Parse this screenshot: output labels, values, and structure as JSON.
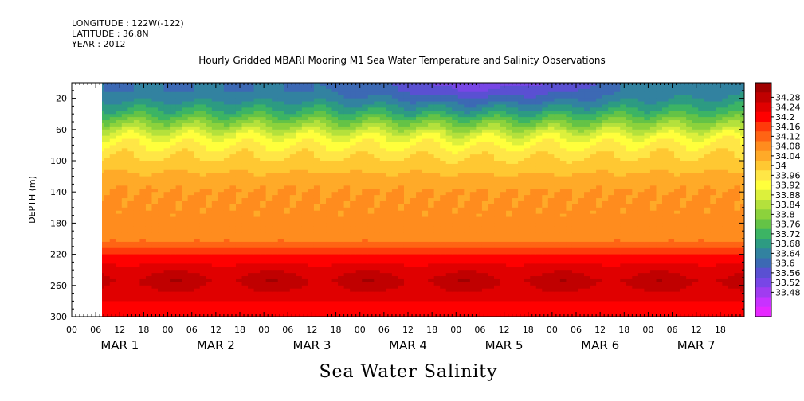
{
  "header": {
    "longitude": "LONGITUDE : 122W(-122)",
    "latitude": "LATITUDE : 36.8N",
    "year": "YEAR : 2012"
  },
  "chart_data": {
    "type": "heatmap",
    "title": "Hourly Gridded MBARI Mooring M1 Sea Water Temperature and Salinity Observations",
    "xlabel": "Sea Water Salinity",
    "ylabel": "DEPTH (m)",
    "y_axis": {
      "ticks": [
        20,
        60,
        100,
        140,
        180,
        220,
        260,
        300
      ],
      "range": [
        0,
        300
      ],
      "inverted": true
    },
    "x_axis": {
      "hour_ticks": [
        "00",
        "06",
        "12",
        "18",
        "00",
        "06",
        "12",
        "18",
        "00",
        "06",
        "12",
        "18",
        "00",
        "06",
        "12",
        "18",
        "00",
        "06",
        "12",
        "18",
        "00",
        "06",
        "12",
        "18",
        "00",
        "06",
        "12",
        "18"
      ],
      "day_labels": [
        "MAR 1",
        "MAR 2",
        "MAR 3",
        "MAR 4",
        "MAR 5",
        "MAR 6",
        "MAR 7"
      ],
      "data_start_hour": 5,
      "total_hours": 168
    },
    "colorbar": {
      "levels": [
        "34.28",
        "34.24",
        "34.2",
        "34.16",
        "34.12",
        "34.08",
        "34.04",
        "34",
        "33.96",
        "33.92",
        "33.88",
        "33.84",
        "33.8",
        "33.76",
        "33.72",
        "33.68",
        "33.64",
        "33.6",
        "33.56",
        "33.52",
        "33.48"
      ],
      "colors": [
        "#a00000",
        "#c00000",
        "#e00000",
        "#ff0000",
        "#ff3a0a",
        "#ff6414",
        "#ff8c1e",
        "#ffaa28",
        "#ffc832",
        "#ffe646",
        "#ffff3c",
        "#dcf03c",
        "#b4e13c",
        "#8cd23c",
        "#64c346",
        "#3cb464",
        "#2d9b82",
        "#3282a0",
        "#3c69b4",
        "#5a50d2",
        "#7846e6",
        "#a03cf0",
        "#c832ff",
        "#e628ff"
      ]
    },
    "profile_depths": [
      10,
      20,
      35,
      50,
      65,
      80,
      100,
      120,
      140,
      160,
      180,
      200,
      210,
      225,
      240,
      255,
      270,
      285,
      300
    ],
    "mean_profile": [
      33.68,
      33.7,
      33.75,
      33.82,
      33.9,
      33.95,
      33.99,
      34.02,
      34.05,
      34.06,
      34.06,
      34.07,
      34.11,
      34.16,
      34.2,
      34.23,
      34.2,
      34.17,
      34.15
    ],
    "surface_anomaly": {
      "hours": [
        5,
        30,
        60,
        80,
        96,
        110,
        125,
        140,
        150,
        168
      ],
      "values": [
        0.0,
        0.0,
        0.0,
        -0.04,
        -0.09,
        -0.08,
        -0.05,
        0.01,
        0.02,
        0.03
      ]
    }
  }
}
